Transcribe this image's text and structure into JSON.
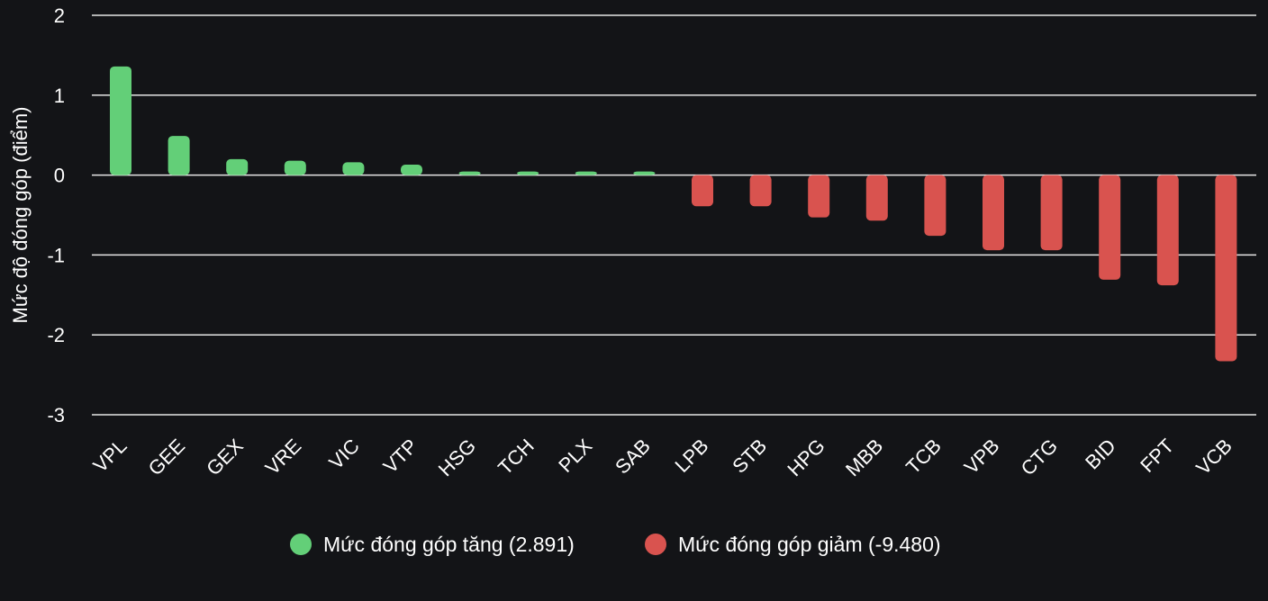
{
  "chart_data": {
    "type": "bar",
    "ylabel": "Mức độ đóng góp (điểm)",
    "ylim": [
      -3,
      2
    ],
    "yticks": [
      2,
      1,
      0,
      -1,
      -2,
      -3
    ],
    "grid": true,
    "legend_position": "bottom-center",
    "categories": [
      "VPL",
      "GEE",
      "GEX",
      "VRE",
      "VIC",
      "VTP",
      "HSG",
      "TCH",
      "PLX",
      "SAB",
      "LPB",
      "STB",
      "HPG",
      "MBB",
      "TCB",
      "VPB",
      "CTG",
      "BID",
      "FPT",
      "VCB"
    ],
    "values": [
      1.36,
      0.49,
      0.2,
      0.18,
      0.16,
      0.13,
      0.04,
      0.04,
      0.04,
      0.04,
      -0.39,
      -0.39,
      -0.53,
      -0.57,
      -0.76,
      -0.94,
      -0.94,
      -1.31,
      -1.38,
      -2.33
    ],
    "series": [
      {
        "name": "Mức đóng góp tăng (2.891)",
        "color": "#63cf78"
      },
      {
        "name": "Mức đóng góp giảm (-9.480)",
        "color": "#d9534f"
      }
    ]
  }
}
